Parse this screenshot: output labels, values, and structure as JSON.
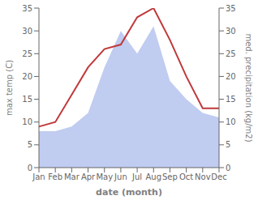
{
  "chart_data": {
    "type": "line",
    "categories": [
      "Jan",
      "Feb",
      "Mar",
      "Apr",
      "May",
      "Jun",
      "Jul",
      "Aug",
      "Sep",
      "Oct",
      "Nov",
      "Dec"
    ],
    "xlabel": "date (month)",
    "ylabel": "max temp (C)",
    "y2label": "med. precipitation (kg/m2)",
    "series": [
      {
        "name": "med. precipitation (kg/m2)",
        "type": "area",
        "axis": "y2",
        "color": "#c0ccf0",
        "values": [
          8,
          8,
          9,
          12,
          22,
          30,
          25,
          31,
          19,
          15,
          12,
          11
        ]
      },
      {
        "name": "max temp (C)",
        "type": "line",
        "axis": "y",
        "color": "#c0393b",
        "values": [
          9,
          10,
          16,
          22,
          26,
          27,
          33,
          35,
          28,
          20,
          13,
          13
        ]
      }
    ],
    "ylim": [
      0,
      35
    ],
    "yticks": [
      0,
      5,
      10,
      15,
      20,
      25,
      30,
      35
    ],
    "y2lim": [
      0,
      35
    ],
    "y2ticks": [
      0,
      5,
      10,
      15,
      20,
      25,
      30,
      35
    ],
    "grid": false
  }
}
